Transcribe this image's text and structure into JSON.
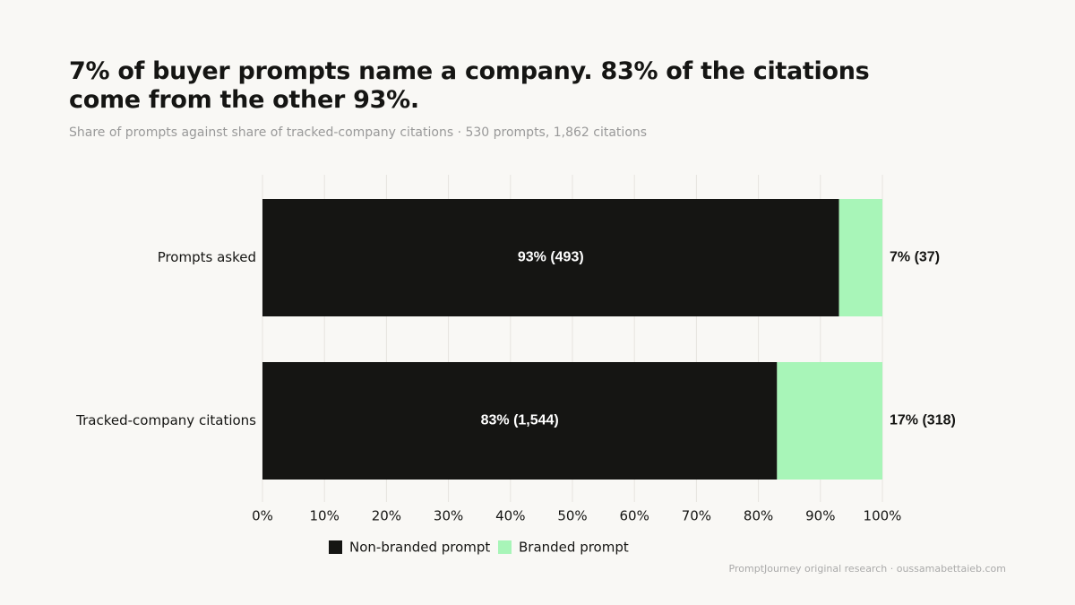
{
  "chart_data": {
    "type": "stacked-barh",
    "title": "7% of buyer prompts name a company. 83% of the citations come from the other 93%.",
    "subtitle": "Share of prompts against share of tracked-company citations · 530 prompts, 1,862 citations",
    "categories": [
      "Prompts asked",
      "Tracked-company citations"
    ],
    "series": [
      {
        "name": "Non-branded prompt",
        "color": "#151513",
        "values": [
          93,
          83
        ],
        "value_labels": [
          "93%  (493)",
          "83%  (1,544)"
        ]
      },
      {
        "name": "Branded prompt",
        "color": "#a8f5b8",
        "values": [
          7,
          17
        ],
        "value_labels": [
          "7%  (37)",
          "17%  (318)"
        ]
      }
    ],
    "xlim": [
      0,
      100
    ],
    "xticks": [
      {
        "value": 0,
        "label": "0%"
      },
      {
        "value": 10,
        "label": "10%"
      },
      {
        "value": 20,
        "label": "20%"
      },
      {
        "value": 30,
        "label": "30%"
      },
      {
        "value": 40,
        "label": "40%"
      },
      {
        "value": 50,
        "label": "50%"
      },
      {
        "value": 60,
        "label": "60%"
      },
      {
        "value": 70,
        "label": "70%"
      },
      {
        "value": 80,
        "label": "80%"
      },
      {
        "value": 90,
        "label": "90%"
      },
      {
        "value": 100,
        "label": "100%"
      }
    ],
    "grid": true,
    "source": "PromptJourney original research · oussamabettaieb.com"
  }
}
